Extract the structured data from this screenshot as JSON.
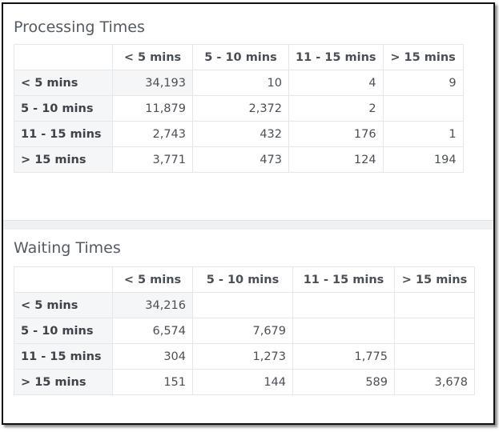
{
  "processing": {
    "title": "Processing Times",
    "columns": [
      "< 5 mins",
      "5 - 10 mins",
      "11 - 15 mins",
      "> 15 mins"
    ],
    "rows": [
      {
        "label": "< 5 mins",
        "cells": [
          "34,193",
          "10",
          "4",
          "9"
        ]
      },
      {
        "label": "5 - 10 mins",
        "cells": [
          "11,879",
          "2,372",
          "2",
          ""
        ]
      },
      {
        "label": "11 - 15 mins",
        "cells": [
          "2,743",
          "432",
          "176",
          "1"
        ]
      },
      {
        "label": "> 15 mins",
        "cells": [
          "3,771",
          "473",
          "124",
          "194"
        ]
      }
    ]
  },
  "waiting": {
    "title": "Waiting Times",
    "columns": [
      "< 5 mins",
      "5 - 10 mins",
      "11 - 15 mins",
      "> 15 mins"
    ],
    "rows": [
      {
        "label": "< 5 mins",
        "cells": [
          "34,216",
          "",
          "",
          ""
        ]
      },
      {
        "label": "5 - 10 mins",
        "cells": [
          "6,574",
          "7,679",
          "",
          ""
        ]
      },
      {
        "label": "11 - 15 mins",
        "cells": [
          "304",
          "1,273",
          "1,775",
          ""
        ]
      },
      {
        "label": "> 15 mins",
        "cells": [
          "151",
          "144",
          "589",
          "3,678"
        ]
      }
    ]
  }
}
